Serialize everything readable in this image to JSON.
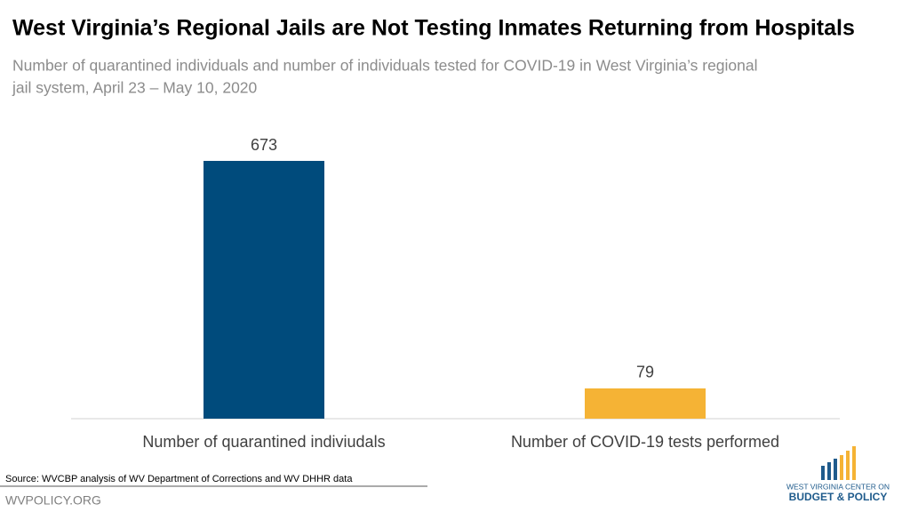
{
  "chart_data": {
    "type": "bar",
    "title": "West Virginia’s Regional Jails are Not Testing Inmates Returning from Hospitals",
    "subtitle": [
      "Number of quarantined individuals and number of individuals tested for COVID-19 in West Virginia’s regional",
      "jail system, April 23 – May 10, 2020"
    ],
    "categories": [
      "Number of quarantined indiviudals",
      "Number of COVID-19 tests performed"
    ],
    "values": [
      673,
      79
    ],
    "colors": [
      "#004b7c",
      "#f5b335"
    ]
  },
  "source": "Source: WVCBP analysis of WV Department of Corrections and WV DHHR data",
  "footer": "WVPOLICY.ORG",
  "logo": [
    "WEST VIRGINIA CENTER ON",
    "BUDGET & POLICY"
  ]
}
